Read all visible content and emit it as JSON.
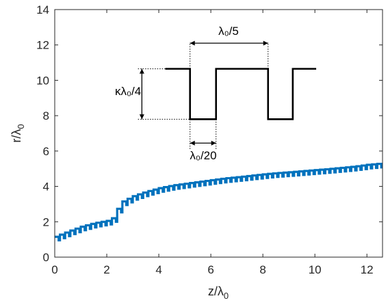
{
  "chart_data": {
    "type": "line",
    "xlabel": "z/λ_0",
    "ylabel": "r/λ_0",
    "xlim": [
      0,
      12.6
    ],
    "ylim": [
      0,
      14
    ],
    "x_ticks": [
      "0",
      "2",
      "4",
      "6",
      "8",
      "10",
      "12"
    ],
    "y_ticks": [
      "0",
      "2",
      "4",
      "6",
      "8",
      "10",
      "12",
      "14"
    ],
    "grid": false,
    "series": [
      {
        "color": "#0072BD",
        "style": "corrugated-step",
        "x": [
          0.0,
          0.5,
          1.0,
          1.5,
          2.0,
          2.2,
          2.35,
          2.5,
          2.6,
          3.0,
          3.5,
          4.0,
          4.5,
          5.0,
          5.5,
          6.0,
          6.5,
          7.0,
          7.5,
          8.0,
          8.5,
          9.0,
          9.5,
          10.0,
          10.5,
          11.0,
          11.5,
          12.0,
          12.6
        ],
        "y": [
          1.15,
          1.45,
          1.72,
          1.92,
          2.05,
          2.2,
          2.6,
          3.0,
          3.15,
          3.45,
          3.7,
          3.9,
          4.05,
          4.15,
          4.25,
          4.35,
          4.45,
          4.52,
          4.6,
          4.68,
          4.75,
          4.8,
          4.86,
          4.92,
          4.98,
          5.05,
          5.12,
          5.22,
          5.3
        ]
      }
    ],
    "inset": {
      "label_period": "λ₀/5",
      "label_depth": "κλ₀/4",
      "label_slot": "λ₀/20",
      "color": "#000000"
    }
  }
}
